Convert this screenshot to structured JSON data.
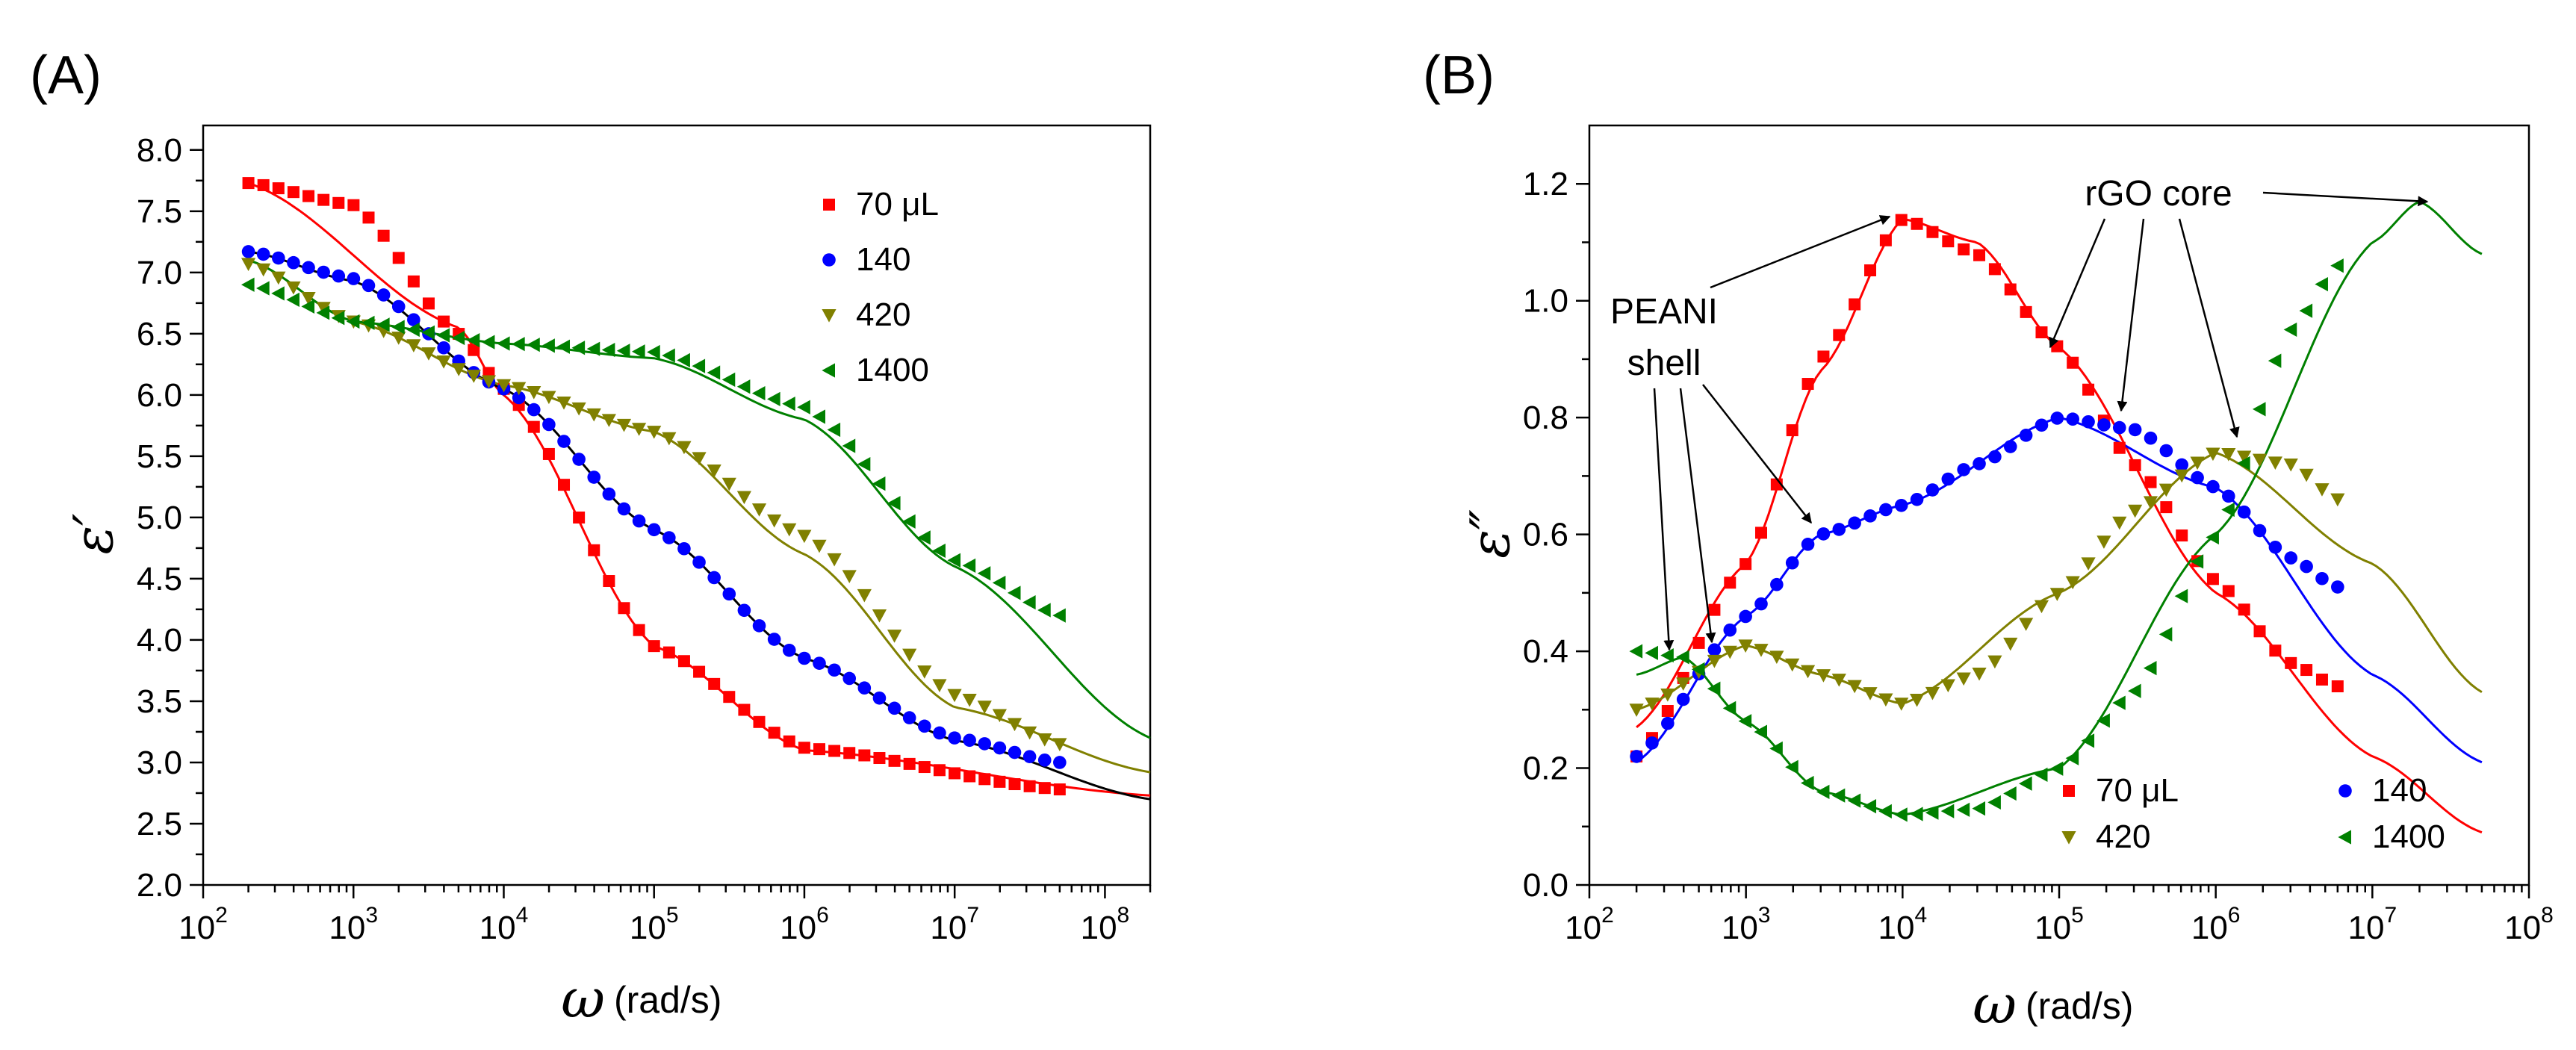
{
  "chart_data": [
    {
      "type": "scatter",
      "panel_label": "(A)",
      "xlabel_symbol": "ω",
      "xlabel_unit": "(rad/s)",
      "ylabel": "ε′",
      "xscale": "log",
      "xlim": [
        100,
        200000000
      ],
      "ylim": [
        2.0,
        8.2
      ],
      "x_tick_labels": [
        {
          "base": "10",
          "exp": "2",
          "value": 100
        },
        {
          "base": "10",
          "exp": "3",
          "value": 1000
        },
        {
          "base": "10",
          "exp": "4",
          "value": 10000
        },
        {
          "base": "10",
          "exp": "5",
          "value": 100000
        },
        {
          "base": "10",
          "exp": "6",
          "value": 1000000
        },
        {
          "base": "10",
          "exp": "7",
          "value": 10000000
        },
        {
          "base": "10",
          "exp": "8",
          "value": 100000000
        }
      ],
      "y_ticks": [
        2.0,
        2.5,
        3.0,
        3.5,
        4.0,
        4.5,
        5.0,
        5.5,
        6.0,
        6.5,
        7.0,
        7.5,
        8.0
      ],
      "y_tick_labels": [
        "2.0",
        "2.5",
        "3.0",
        "3.5",
        "4.0",
        "4.5",
        "5.0",
        "5.5",
        "6.0",
        "6.5",
        "7.0",
        "7.5",
        "8.0"
      ],
      "legend_position": "top-right",
      "series": [
        {
          "name": "70 μL",
          "color": "#ff0000",
          "marker": "square",
          "fit_color": "#ff0000",
          "x": [
            200,
            1000,
            5000,
            10000,
            100000,
            1000000,
            50000000
          ],
          "y": [
            7.73,
            7.55,
            6.5,
            6.05,
            3.95,
            3.12,
            2.78
          ],
          "fit_x": [
            200,
            5000,
            10000,
            100000,
            1000000,
            200000000
          ],
          "fit_y": [
            7.73,
            6.55,
            6.0,
            3.95,
            3.1,
            2.73
          ]
        },
        {
          "name": "140",
          "color": "#0000ff",
          "marker": "circle",
          "fit_color": "#000000",
          "x": [
            200,
            1000,
            10000,
            100000,
            1000000,
            10000000,
            50000000
          ],
          "y": [
            7.17,
            6.95,
            6.05,
            4.9,
            3.85,
            3.2,
            3.0
          ],
          "fit_x": [
            200,
            1000,
            10000,
            100000,
            1000000,
            10000000,
            200000000
          ],
          "fit_y": [
            7.17,
            6.93,
            6.05,
            4.9,
            3.85,
            3.18,
            2.7
          ]
        },
        {
          "name": "420",
          "color": "#808000",
          "marker": "triangle-down",
          "fit_color": "#808000",
          "x": [
            200,
            1000,
            10000,
            100000,
            1000000,
            10000000,
            50000000
          ],
          "y": [
            7.07,
            6.6,
            6.08,
            5.7,
            4.85,
            3.55,
            3.15
          ],
          "fit_x": [
            200,
            1000,
            10000,
            100000,
            1000000,
            10000000,
            200000000
          ],
          "fit_y": [
            7.1,
            6.6,
            6.08,
            5.7,
            4.7,
            3.45,
            2.92
          ]
        },
        {
          "name": "1400",
          "color": "#008000",
          "marker": "triangle-left",
          "fit_color": "#008000",
          "x": [
            200,
            1000,
            10000,
            100000,
            1000000,
            10000000,
            50000000
          ],
          "y": [
            6.9,
            6.6,
            6.42,
            6.35,
            5.9,
            4.65,
            4.2
          ],
          "fit_x": [
            200,
            1000,
            10000,
            100000,
            1000000,
            10000000,
            200000000
          ],
          "fit_y": [
            7.1,
            6.6,
            6.42,
            6.3,
            5.8,
            4.6,
            3.2
          ]
        }
      ]
    },
    {
      "type": "scatter",
      "panel_label": "(B)",
      "xlabel_symbol": "ω",
      "xlabel_unit": "(rad/s)",
      "ylabel": "ε″",
      "xscale": "log",
      "xlim": [
        100,
        100000000
      ],
      "ylim": [
        0.0,
        1.3
      ],
      "x_tick_labels": [
        {
          "base": "10",
          "exp": "2",
          "value": 100
        },
        {
          "base": "10",
          "exp": "3",
          "value": 1000
        },
        {
          "base": "10",
          "exp": "4",
          "value": 10000
        },
        {
          "base": "10",
          "exp": "5",
          "value": 100000
        },
        {
          "base": "10",
          "exp": "6",
          "value": 1000000
        },
        {
          "base": "10",
          "exp": "7",
          "value": 10000000
        },
        {
          "base": "10",
          "exp": "8",
          "value": 100000000
        }
      ],
      "y_ticks": [
        0.0,
        0.2,
        0.4,
        0.6,
        0.8,
        1.0,
        1.2
      ],
      "y_tick_labels": [
        "0.0",
        "0.2",
        "0.4",
        "0.6",
        "0.8",
        "1.0",
        "1.2"
      ],
      "legend_position": "bottom-right",
      "series": [
        {
          "name": "70 μL",
          "color": "#ff0000",
          "marker": "square",
          "fit_color": "#ff0000",
          "x": [
            200,
            1000,
            3000,
            10000,
            30000,
            100000,
            300000,
            1000000,
            3000000,
            6000000
          ],
          "y": [
            0.22,
            0.55,
            0.9,
            1.14,
            1.08,
            0.92,
            0.72,
            0.52,
            0.38,
            0.34
          ],
          "fit_x": [
            200,
            1000,
            3000,
            10000,
            30000,
            100000,
            1000000,
            10000000,
            50000000
          ],
          "fit_y": [
            0.27,
            0.55,
            0.88,
            1.14,
            1.1,
            0.92,
            0.5,
            0.22,
            0.09
          ]
        },
        {
          "name": "140",
          "color": "#0000ff",
          "marker": "circle",
          "fit_color": "#0000ff",
          "x": [
            200,
            1000,
            3000,
            10000,
            30000,
            100000,
            300000,
            1000000,
            3000000,
            6000000
          ],
          "y": [
            0.22,
            0.46,
            0.6,
            0.65,
            0.72,
            0.8,
            0.78,
            0.68,
            0.56,
            0.51
          ],
          "fit_x": [
            200,
            1000,
            3000,
            10000,
            100000,
            1000000,
            10000000,
            50000000
          ],
          "fit_y": [
            0.21,
            0.46,
            0.6,
            0.65,
            0.8,
            0.68,
            0.36,
            0.21
          ]
        },
        {
          "name": "420",
          "color": "#808000",
          "marker": "triangle-down",
          "fit_color": "#808000",
          "x": [
            200,
            1000,
            3000,
            10000,
            30000,
            100000,
            300000,
            1000000,
            3000000,
            6000000
          ],
          "y": [
            0.3,
            0.41,
            0.36,
            0.31,
            0.36,
            0.5,
            0.64,
            0.74,
            0.72,
            0.66
          ],
          "fit_x": [
            200,
            1000,
            3000,
            10000,
            100000,
            1000000,
            10000000,
            50000000
          ],
          "fit_y": [
            0.3,
            0.41,
            0.36,
            0.31,
            0.5,
            0.74,
            0.55,
            0.33
          ]
        },
        {
          "name": "1400",
          "color": "#008000",
          "marker": "triangle-left",
          "fit_color": "#008000",
          "x": [
            200,
            400,
            1000,
            3000,
            10000,
            30000,
            100000,
            300000,
            1000000,
            3000000,
            6000000
          ],
          "y": [
            0.4,
            0.39,
            0.28,
            0.16,
            0.12,
            0.13,
            0.2,
            0.33,
            0.6,
            0.95,
            1.06
          ],
          "fit_x": [
            200,
            400,
            1000,
            3000,
            10000,
            100000,
            1000000,
            10000000,
            20000000,
            50000000
          ],
          "fit_y": [
            0.36,
            0.39,
            0.28,
            0.16,
            0.12,
            0.2,
            0.6,
            1.1,
            1.17,
            1.08
          ]
        }
      ],
      "annotations": [
        {
          "text": "PEANI",
          "role": "label",
          "anchor_x": 1000,
          "anchor_y": 1.0
        },
        {
          "text": "shell",
          "role": "label",
          "anchor_x": 1000,
          "anchor_y": 0.9
        },
        {
          "text": "rGO core",
          "role": "label",
          "anchor_x": 300000,
          "anchor_y": 1.15
        }
      ]
    }
  ]
}
